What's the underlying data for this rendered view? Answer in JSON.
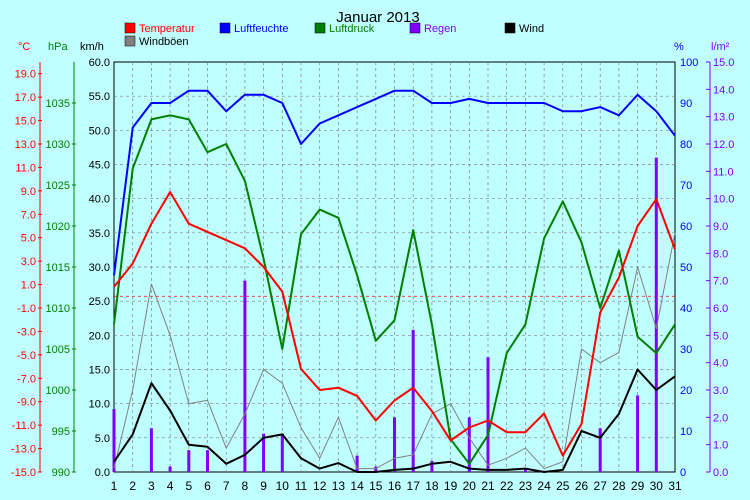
{
  "chart_data": {
    "type": "line",
    "title": "Januar 2013",
    "x": [
      1,
      2,
      3,
      4,
      5,
      6,
      7,
      8,
      9,
      10,
      11,
      12,
      13,
      14,
      15,
      16,
      17,
      18,
      19,
      20,
      21,
      22,
      23,
      24,
      25,
      26,
      27,
      28,
      29,
      30,
      31
    ],
    "axes": {
      "temperature": {
        "unit": "°C",
        "range": [
          -15,
          20
        ],
        "ticks": [
          "19.0",
          "17.0",
          "15.0",
          "13.0",
          "11.0",
          "9.0",
          "7.0",
          "5.0",
          "3.0",
          "1.0",
          "-1.0",
          "-3.0",
          "-5.0",
          "-7.0",
          "-9.0",
          "-11.0",
          "-13.0",
          "-15.0"
        ]
      },
      "pressure": {
        "unit": "hPa",
        "range": [
          990,
          1040
        ],
        "ticks": [
          "1035",
          "1030",
          "1025",
          "1020",
          "1015",
          "1010",
          "1005",
          "1000",
          "995",
          "990"
        ]
      },
      "wind": {
        "unit": "km/h",
        "range": [
          0,
          60
        ],
        "ticks": [
          "60.0",
          "55.0",
          "50.0",
          "45.0",
          "40.0",
          "35.0",
          "30.0",
          "25.0",
          "20.0",
          "15.0",
          "10.0",
          "5.0",
          "0.0"
        ]
      },
      "humidity": {
        "unit": "%",
        "range": [
          0,
          100
        ],
        "ticks": [
          "100",
          "90",
          "80",
          "70",
          "60",
          "50",
          "40",
          "30",
          "20",
          "10",
          "0"
        ]
      },
      "rain": {
        "unit": "l/m²",
        "range": [
          0,
          15
        ],
        "ticks": [
          "15.0",
          "14.0",
          "13.0",
          "12.0",
          "11.0",
          "10.0",
          "9.0",
          "8.0",
          "7.0",
          "6.0",
          "5.0",
          "4.0",
          "3.0",
          "2.0",
          "1.0",
          "0.0"
        ]
      }
    },
    "grid": true,
    "legend": [
      {
        "name": "Temperatur",
        "color": "#ff0000"
      },
      {
        "name": "Windböen",
        "color": "#808080"
      },
      {
        "name": "Luftfeuchte",
        "color": "#0000ff"
      },
      {
        "name": "Luftdruck",
        "color": "#008000"
      },
      {
        "name": "Regen",
        "color": "#8000ff"
      },
      {
        "name": "Wind",
        "color": "#000000"
      }
    ],
    "series": [
      {
        "name": "Temperatur",
        "axis": "temperature",
        "color": "#ff0000",
        "values": [
          0.8,
          2.8,
          6.2,
          8.9,
          6.2,
          5.5,
          4.8,
          4.1,
          2.5,
          0.4,
          -6.2,
          -8.0,
          -7.8,
          -8.5,
          -10.6,
          -8.9,
          -7.8,
          -9.8,
          -12.3,
          -11.2,
          -10.6,
          -11.6,
          -11.6,
          -10.0,
          -13.6,
          -10.9,
          -1.4,
          1.6,
          6.0,
          8.3,
          4.0
        ]
      },
      {
        "name": "Windböen",
        "axis": "wind",
        "color": "#808080",
        "values": [
          0.5,
          12.0,
          27.5,
          20.0,
          10.0,
          10.5,
          3.5,
          8.5,
          15.0,
          13.0,
          6.5,
          2.0,
          8.0,
          0.5,
          0.5,
          2.0,
          2.5,
          8.5,
          10.0,
          5.0,
          1.0,
          2.0,
          3.5,
          0.5,
          1.5,
          18.0,
          16.0,
          17.5,
          30.0,
          21.0,
          35.0
        ]
      },
      {
        "name": "Luftfeuchte",
        "axis": "humidity",
        "color": "#0000ff",
        "values": [
          48,
          84,
          90,
          90,
          93,
          93,
          88,
          92,
          92,
          90,
          80,
          85,
          87,
          89,
          91,
          93,
          93,
          90,
          90,
          91,
          90,
          90,
          90,
          90,
          88,
          88,
          89,
          87,
          92,
          88,
          82
        ]
      },
      {
        "name": "Luftdruck",
        "axis": "pressure",
        "color": "#008000",
        "values": [
          1008,
          1027,
          1033,
          1033.5,
          1033,
          1029,
          1030,
          1025.5,
          1016,
          1005,
          1019,
          1022,
          1021,
          1014,
          1006,
          1008.5,
          1019.5,
          1008,
          994,
          991,
          994.5,
          1004.5,
          1008,
          1018.5,
          1023,
          1018,
          1010,
          1017,
          1006.5,
          1004.5,
          1008
        ]
      },
      {
        "name": "Wind",
        "axis": "wind",
        "color": "#000000",
        "values": [
          1.5,
          5.5,
          13.0,
          9.0,
          4.0,
          3.7,
          1.2,
          2.5,
          5.0,
          5.5,
          2.0,
          0.5,
          1.3,
          0,
          0,
          0.3,
          0.5,
          1.2,
          1.5,
          0.5,
          0.3,
          0.3,
          0.5,
          0,
          0.3,
          6.0,
          5.0,
          8.5,
          15.0,
          12.0,
          14.0
        ]
      },
      {
        "name": "Regen",
        "axis": "rain",
        "color": "#8000ff",
        "type": "bar",
        "values": [
          2.3,
          0,
          1.6,
          0.2,
          0.8,
          0.8,
          0,
          7.0,
          1.4,
          1.4,
          0,
          0,
          0,
          0.6,
          0.2,
          2.0,
          5.2,
          0.4,
          0,
          2.0,
          4.2,
          0,
          0.1,
          0,
          0,
          0,
          1.6,
          0,
          2.8,
          11.5,
          0
        ]
      }
    ]
  }
}
